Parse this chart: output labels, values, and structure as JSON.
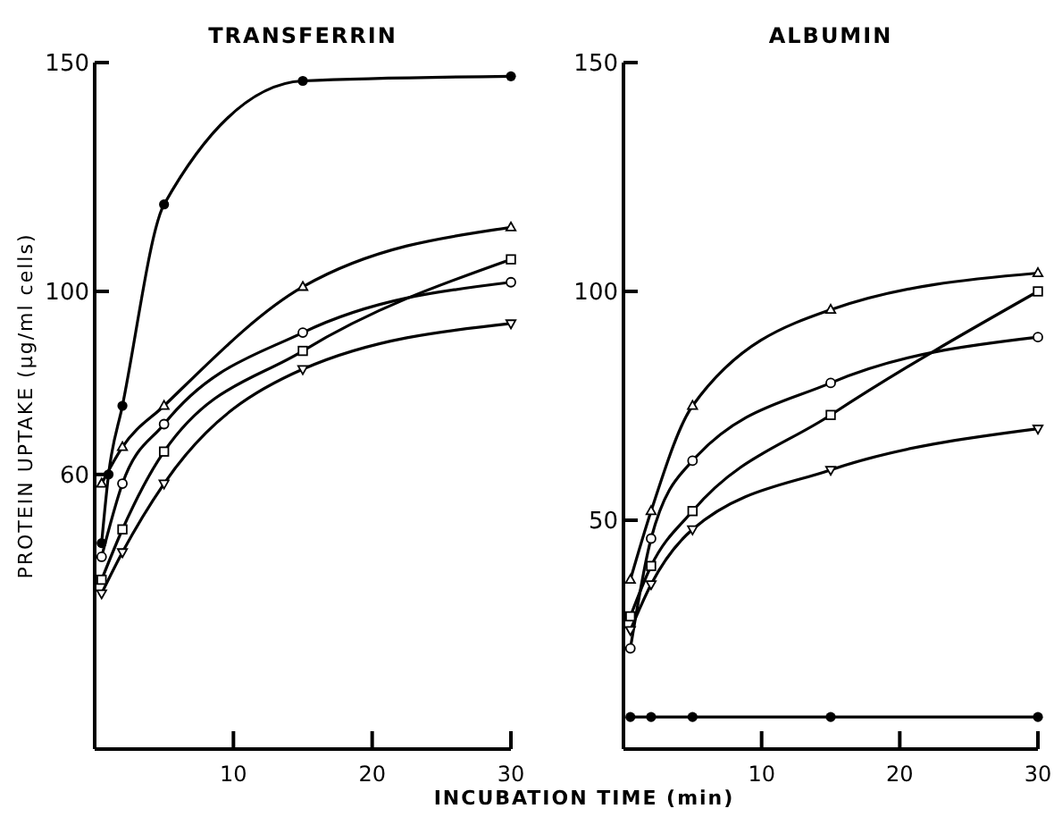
{
  "chart_data": [
    {
      "type": "line",
      "title": "TRANSFERRIN",
      "ylabel": "PROTEIN UPTAKE (μg/ml cells)",
      "xlabel": "INCUBATION TIME (min)",
      "xlim": [
        0,
        30
      ],
      "xticks": [
        10,
        20,
        30
      ],
      "ylim": [
        0,
        150
      ],
      "yticks": [
        60,
        100,
        150
      ],
      "grid": false,
      "series": [
        {
          "color": "#000000",
          "marker": "circle",
          "x": [
            0.5,
            1,
            2,
            5,
            15,
            30
          ],
          "values": [
            45,
            60,
            75,
            119,
            146,
            147
          ]
        },
        {
          "color": "#000000",
          "marker": "triangle-open",
          "x": [
            0.5,
            2,
            5,
            15,
            30
          ],
          "values": [
            58,
            66,
            75,
            101,
            114
          ]
        },
        {
          "color": "#000000",
          "marker": "circle-open",
          "x": [
            0.5,
            2,
            5,
            15,
            30
          ],
          "values": [
            42,
            58,
            71,
            91,
            102
          ]
        },
        {
          "color": "#000000",
          "marker": "square-open",
          "x": [
            0.5,
            2,
            5,
            15,
            30
          ],
          "values": [
            37,
            48,
            65,
            87,
            107
          ]
        },
        {
          "color": "#000000",
          "marker": "triangle-down-open",
          "x": [
            0.5,
            2,
            5,
            15,
            30
          ],
          "values": [
            34,
            43,
            58,
            83,
            93
          ]
        }
      ]
    },
    {
      "type": "line",
      "title": "ALBUMIN",
      "xlim": [
        0,
        30
      ],
      "xticks": [
        10,
        20,
        30
      ],
      "ylim": [
        0,
        150
      ],
      "yticks": [
        50,
        100,
        150
      ],
      "grid": false,
      "series": [
        {
          "color": "#000000",
          "marker": "circle",
          "x": [
            0.5,
            2,
            5,
            15,
            30
          ],
          "values": [
            7,
            7,
            7,
            7,
            7
          ]
        },
        {
          "color": "#000000",
          "marker": "triangle-open",
          "x": [
            0.5,
            2,
            5,
            15,
            30
          ],
          "values": [
            37,
            52,
            75,
            96,
            104
          ]
        },
        {
          "color": "#000000",
          "marker": "circle-open",
          "x": [
            0.5,
            2,
            5,
            15,
            30
          ],
          "values": [
            22,
            46,
            63,
            80,
            90
          ]
        },
        {
          "color": "#000000",
          "marker": "square-open",
          "x": [
            0.5,
            2,
            5,
            15,
            30
          ],
          "values": [
            29,
            40,
            52,
            73,
            100
          ]
        },
        {
          "color": "#000000",
          "marker": "triangle-down-open",
          "x": [
            0.5,
            2,
            5,
            15,
            30
          ],
          "values": [
            26,
            36,
            48,
            61,
            70
          ]
        }
      ]
    }
  ]
}
